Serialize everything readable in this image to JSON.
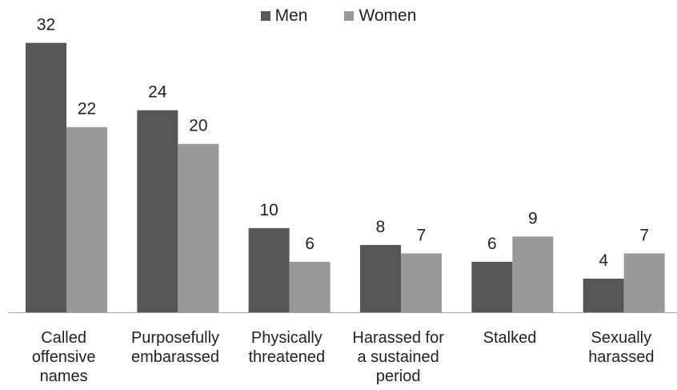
{
  "legend": [
    {
      "label": "Men",
      "color": "#565656"
    },
    {
      "label": "Women",
      "color": "#999999"
    }
  ],
  "chart_data": {
    "type": "bar",
    "categories": [
      "Called\noffensive\nnames",
      "Purposefully\nembarassed",
      "Physically\nthreatened",
      "Harassed for\na sustained\nperiod",
      "Stalked",
      "Sexually\nharassed"
    ],
    "series": [
      {
        "name": "Men",
        "color": "#565656",
        "values": [
          32,
          24,
          10,
          8,
          6,
          4
        ]
      },
      {
        "name": "Women",
        "color": "#999999",
        "values": [
          22,
          20,
          6,
          7,
          9,
          7
        ]
      }
    ],
    "ylim": [
      0,
      35
    ],
    "grid": false,
    "legend_position": "top-center",
    "data_labels": true
  }
}
